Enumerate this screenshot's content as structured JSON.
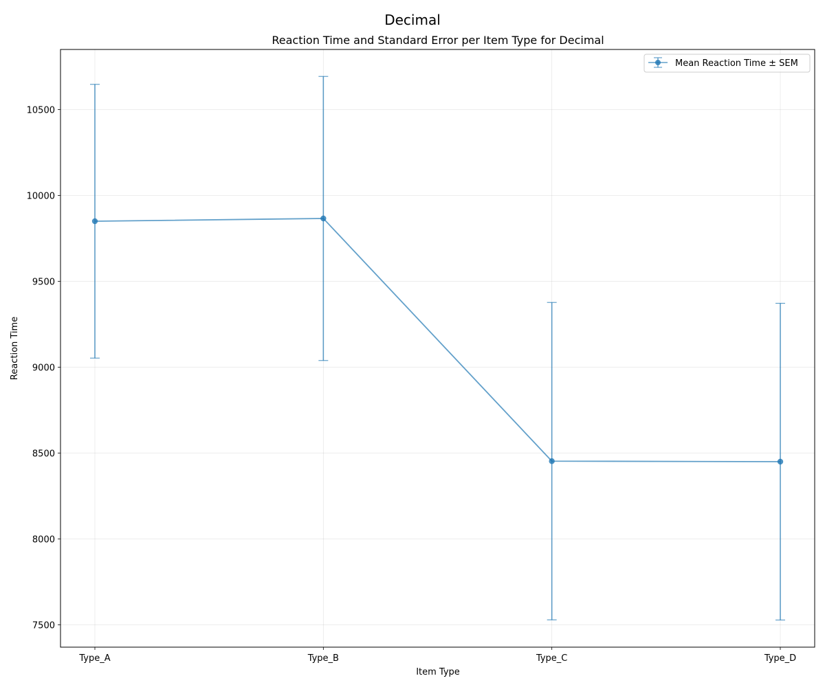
{
  "figure": {
    "suptitle": "Decimal"
  },
  "chart_data": {
    "type": "line",
    "title": "Reaction Time and Standard Error per Item Type for Decimal",
    "xlabel": "Item Type",
    "ylabel": "Reaction Time",
    "categories": [
      "Type_A",
      "Type_B",
      "Type_C",
      "Type_D"
    ],
    "ylim": [
      7370,
      10850
    ],
    "yticks": [
      7500,
      8000,
      8500,
      9000,
      9500,
      10000,
      10500
    ],
    "grid": true,
    "legend_position": "top-right",
    "series": [
      {
        "name": "Mean Reaction Time ± SEM",
        "values": [
          9850,
          9866,
          8453,
          8450
        ],
        "errors": [
          797,
          827,
          924,
          922
        ],
        "color": "#1f77b4"
      }
    ]
  }
}
